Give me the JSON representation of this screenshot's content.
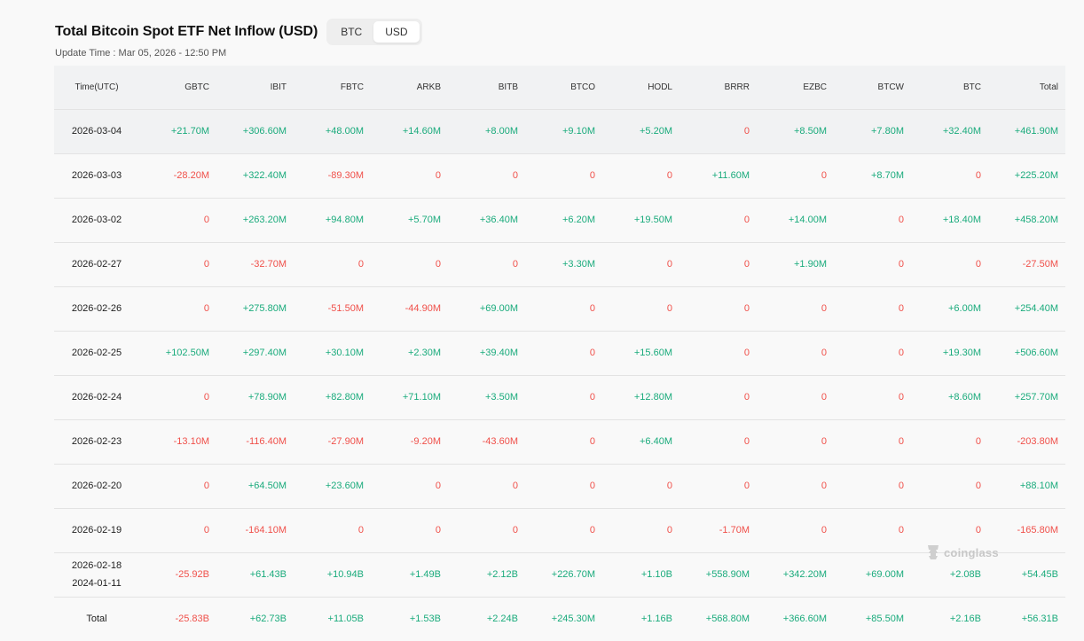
{
  "header": {
    "title": "Total Bitcoin Spot ETF Net Inflow (USD)",
    "toggle": [
      {
        "label": "BTC",
        "active": false
      },
      {
        "label": "USD",
        "active": true
      }
    ],
    "update_time": "Update Time : Mar 05, 2026 - 12:50 PM"
  },
  "table": {
    "columns": [
      "Time(UTC)",
      "GBTC",
      "IBIT",
      "FBTC",
      "ARKB",
      "BITB",
      "BTCO",
      "HODL",
      "BRRR",
      "EZBC",
      "BTCW",
      "BTC",
      "Total"
    ],
    "rows": [
      {
        "time": "2026-03-04",
        "highlight": true,
        "values": [
          "+21.70M",
          "+306.60M",
          "+48.00M",
          "+14.60M",
          "+8.00M",
          "+9.10M",
          "+5.20M",
          "0",
          "+8.50M",
          "+7.80M",
          "+32.40M",
          "+461.90M"
        ]
      },
      {
        "time": "2026-03-03",
        "values": [
          "-28.20M",
          "+322.40M",
          "-89.30M",
          "0",
          "0",
          "0",
          "0",
          "+11.60M",
          "0",
          "+8.70M",
          "0",
          "+225.20M"
        ]
      },
      {
        "time": "2026-03-02",
        "values": [
          "0",
          "+263.20M",
          "+94.80M",
          "+5.70M",
          "+36.40M",
          "+6.20M",
          "+19.50M",
          "0",
          "+14.00M",
          "0",
          "+18.40M",
          "+458.20M"
        ]
      },
      {
        "time": "2026-02-27",
        "values": [
          "0",
          "-32.70M",
          "0",
          "0",
          "0",
          "+3.30M",
          "0",
          "0",
          "+1.90M",
          "0",
          "0",
          "-27.50M"
        ]
      },
      {
        "time": "2026-02-26",
        "values": [
          "0",
          "+275.80M",
          "-51.50M",
          "-44.90M",
          "+69.00M",
          "0",
          "0",
          "0",
          "0",
          "0",
          "+6.00M",
          "+254.40M"
        ]
      },
      {
        "time": "2026-02-25",
        "values": [
          "+102.50M",
          "+297.40M",
          "+30.10M",
          "+2.30M",
          "+39.40M",
          "0",
          "+15.60M",
          "0",
          "0",
          "0",
          "+19.30M",
          "+506.60M"
        ]
      },
      {
        "time": "2026-02-24",
        "values": [
          "0",
          "+78.90M",
          "+82.80M",
          "+71.10M",
          "+3.50M",
          "0",
          "+12.80M",
          "0",
          "0",
          "0",
          "+8.60M",
          "+257.70M"
        ]
      },
      {
        "time": "2026-02-23",
        "values": [
          "-13.10M",
          "-116.40M",
          "-27.90M",
          "-9.20M",
          "-43.60M",
          "0",
          "+6.40M",
          "0",
          "0",
          "0",
          "0",
          "-203.80M"
        ]
      },
      {
        "time": "2026-02-20",
        "values": [
          "0",
          "+64.50M",
          "+23.60M",
          "0",
          "0",
          "0",
          "0",
          "0",
          "0",
          "0",
          "0",
          "+88.10M"
        ]
      },
      {
        "time": "2026-02-19",
        "values": [
          "0",
          "-164.10M",
          "0",
          "0",
          "0",
          "0",
          "0",
          "-1.70M",
          "0",
          "0",
          "0",
          "-165.80M"
        ]
      },
      {
        "time": "2026-02-18",
        "time2": "2024-01-11",
        "values": [
          "-25.92B",
          "+61.43B",
          "+10.94B",
          "+1.49B",
          "+2.12B",
          "+226.70M",
          "+1.10B",
          "+558.90M",
          "+342.20M",
          "+69.00M",
          "+2.08B",
          "+54.45B"
        ]
      },
      {
        "time": "Total",
        "values": [
          "-25.83B",
          "+62.73B",
          "+11.05B",
          "+1.53B",
          "+2.24B",
          "+245.30M",
          "+1.16B",
          "+568.80M",
          "+366.60M",
          "+85.50M",
          "+2.16B",
          "+56.31B"
        ]
      }
    ]
  },
  "watermark": {
    "text": "coinglass",
    "icon": "coinglass-logo-icon"
  },
  "colors": {
    "positive": "#1aab7c",
    "negative": "#f0504a",
    "header_bg": "#f1f2f3"
  }
}
